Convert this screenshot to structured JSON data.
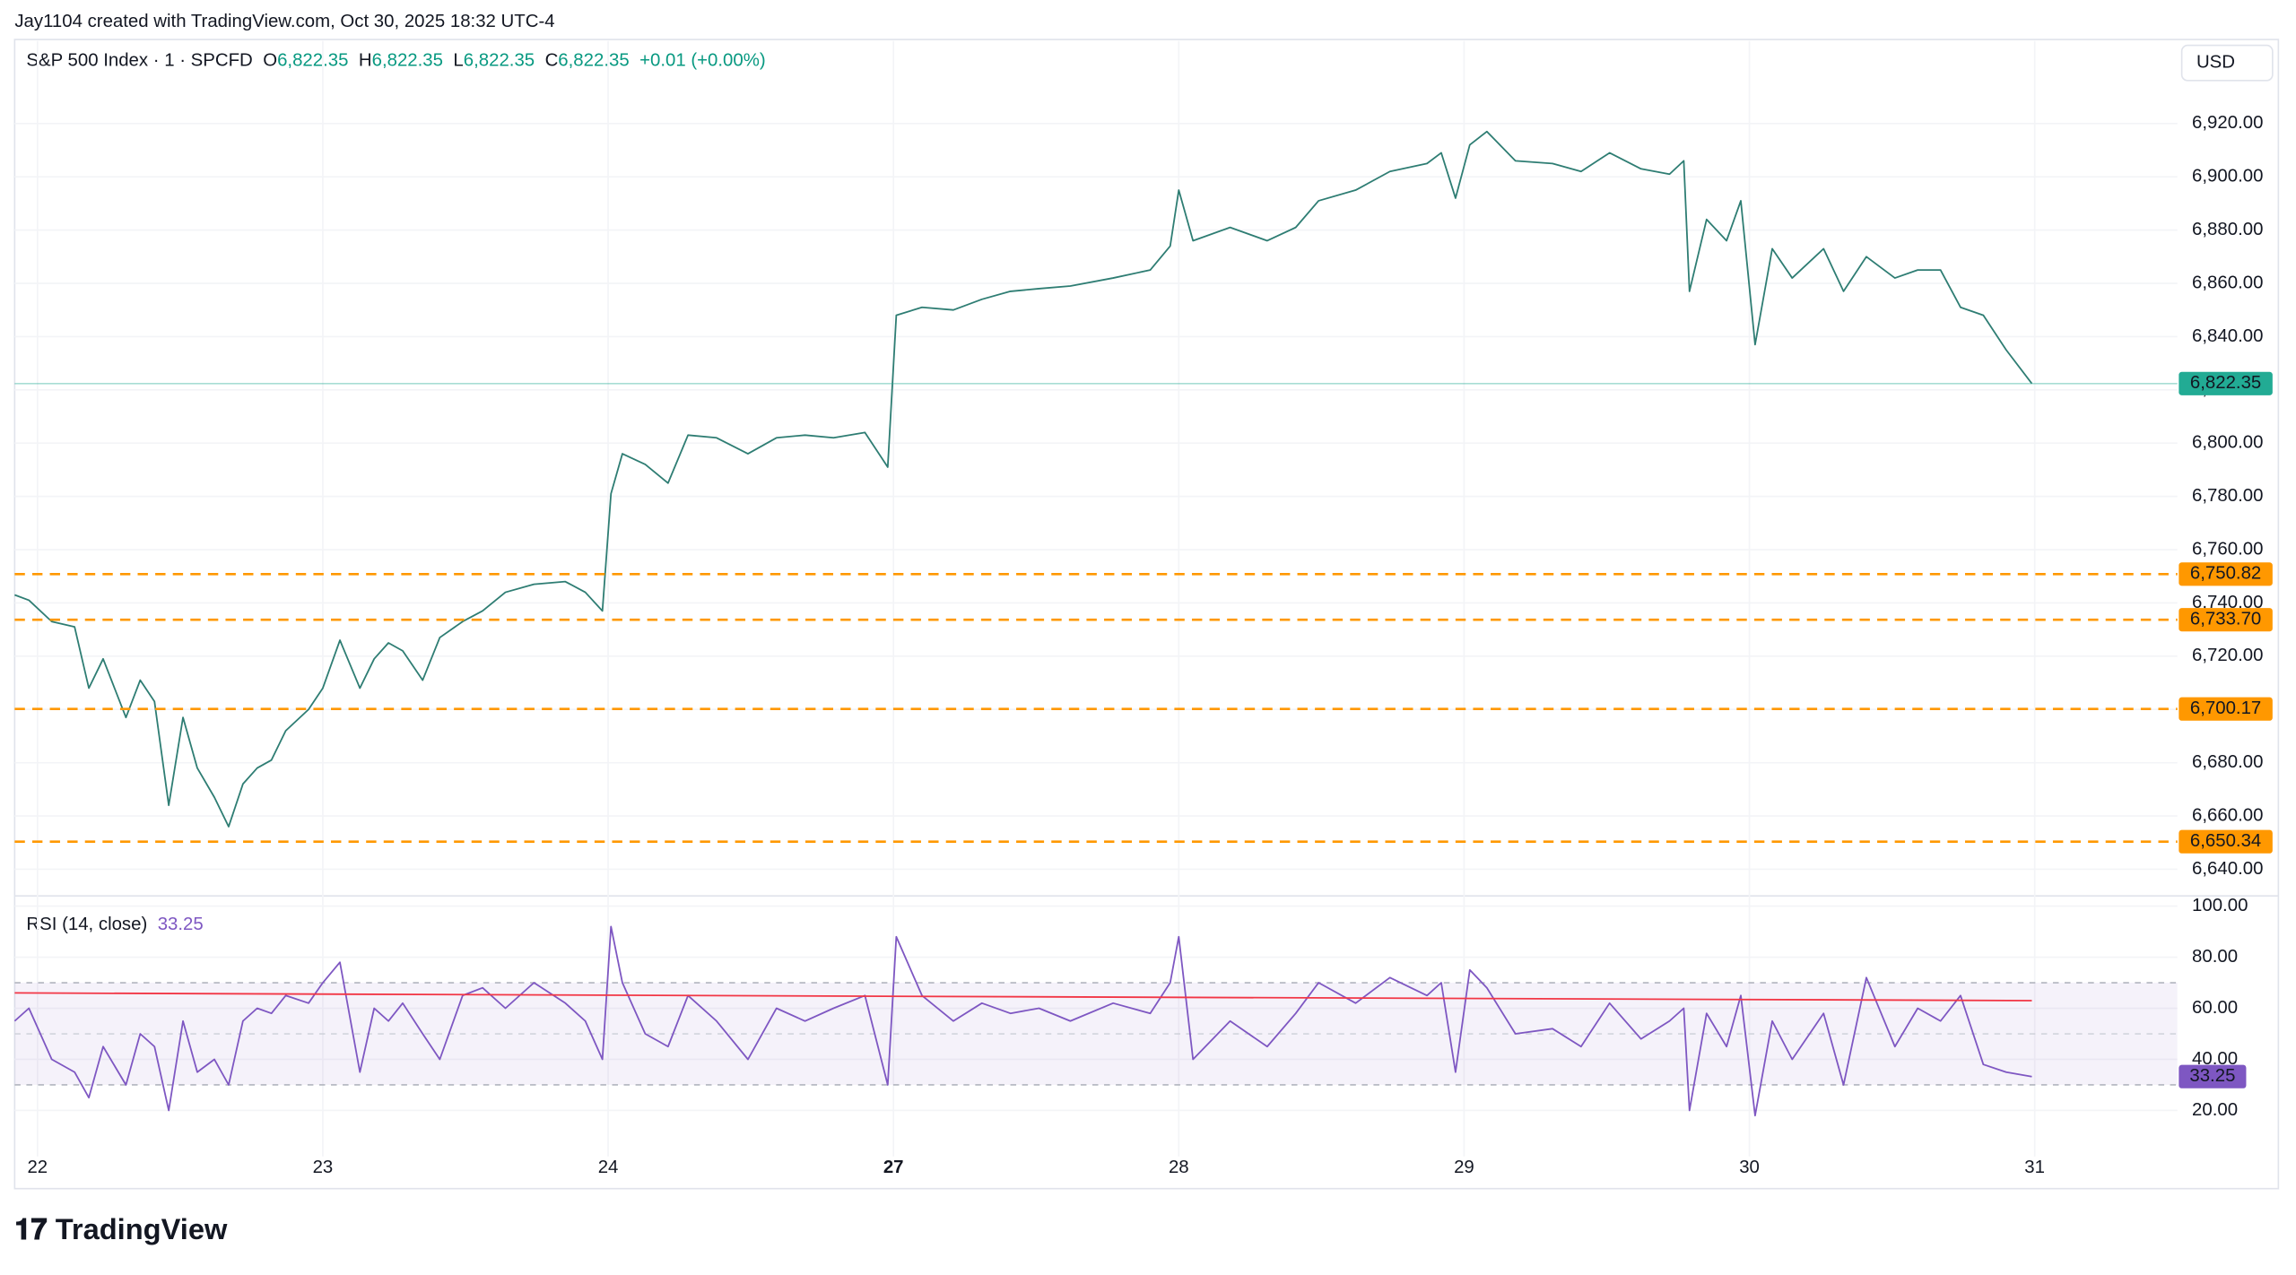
{
  "header": {
    "credit": "Jay1104 created with TradingView.com, Oct 30, 2025 18:32 UTC-4",
    "symbol": "S&P 500 Index · 1 · SPCFD",
    "fields": [
      {
        "key": "O",
        "value": "6,822.35"
      },
      {
        "key": "H",
        "value": "6,822.35"
      },
      {
        "key": "L",
        "value": "6,822.35"
      },
      {
        "key": "C",
        "value": "6,822.35"
      }
    ],
    "change": "+0.01 (+0.00%)",
    "currency": "USD"
  },
  "footer": {
    "logo": "TradingView"
  },
  "chart_data": [
    {
      "type": "line",
      "grid": true,
      "xlim": [
        -0.08,
        7.5
      ],
      "xticks": [
        {
          "value": 0,
          "label": "22"
        },
        {
          "value": 1,
          "label": "23"
        },
        {
          "value": 2,
          "label": "24"
        },
        {
          "value": 3,
          "label": "27",
          "bold": true
        },
        {
          "value": 4,
          "label": "28"
        },
        {
          "value": 5,
          "label": "29"
        },
        {
          "value": 6,
          "label": "30"
        },
        {
          "value": 7,
          "label": "31"
        }
      ],
      "ylim": [
        6630,
        6951
      ],
      "yticks": [
        {
          "value": 6640,
          "label": "6,640.00"
        },
        {
          "value": 6660,
          "label": "6,660.00"
        },
        {
          "value": 6680,
          "label": "6,680.00"
        },
        {
          "value": 6700,
          "label": "6,700.00"
        },
        {
          "value": 6720,
          "label": "6,720.00"
        },
        {
          "value": 6740,
          "label": "6,740.00"
        },
        {
          "value": 6760,
          "label": "6,760.00"
        },
        {
          "value": 6780,
          "label": "6,780.00"
        },
        {
          "value": 6800,
          "label": "6,800.00"
        },
        {
          "value": 6820,
          "label": "6,820.00"
        },
        {
          "value": 6840,
          "label": "6,840.00"
        },
        {
          "value": 6860,
          "label": "6,860.00"
        },
        {
          "value": 6880,
          "label": "6,880.00"
        },
        {
          "value": 6900,
          "label": "6,900.00"
        },
        {
          "value": 6920,
          "label": "6,920.00"
        }
      ],
      "hlines": [
        {
          "value": 6750.82,
          "label": "6,750.82"
        },
        {
          "value": 6733.7,
          "label": "6,733.70"
        },
        {
          "value": 6700.17,
          "label": "6,700.17"
        },
        {
          "value": 6650.34,
          "label": "6,650.34"
        }
      ],
      "hline_color": "#ff9800",
      "last_price": {
        "value": 6822.35,
        "label": "6,822.35",
        "color": "#22ab94"
      },
      "series": [
        {
          "color": "#2e7d73",
          "x": [
            -0.08,
            -0.03,
            0.05,
            0.13,
            0.18,
            0.23,
            0.31,
            0.36,
            0.41,
            0.46,
            0.51,
            0.56,
            0.62,
            0.67,
            0.72,
            0.77,
            0.82,
            0.87,
            0.95,
            1.0,
            1.06,
            1.13,
            1.18,
            1.23,
            1.28,
            1.35,
            1.41,
            1.49,
            1.56,
            1.64,
            1.74,
            1.85,
            1.92,
            1.98,
            2.01,
            2.05,
            2.13,
            2.21,
            2.28,
            2.38,
            2.49,
            2.59,
            2.69,
            2.79,
            2.9,
            2.98,
            3.01,
            3.1,
            3.21,
            3.31,
            3.41,
            3.51,
            3.62,
            3.77,
            3.9,
            3.97,
            4.0,
            4.05,
            4.18,
            4.31,
            4.41,
            4.49,
            4.62,
            4.74,
            4.87,
            4.92,
            4.97,
            5.02,
            5.08,
            5.18,
            5.31,
            5.41,
            5.51,
            5.62,
            5.72,
            5.77,
            5.79,
            5.85,
            5.92,
            5.97,
            6.02,
            6.08,
            6.15,
            6.26,
            6.33,
            6.41,
            6.51,
            6.59,
            6.67,
            6.74,
            6.82,
            6.9,
            6.99
          ],
          "values": [
            6743,
            6741,
            6733,
            6731,
            6708,
            6719,
            6697,
            6711,
            6703,
            6664,
            6697,
            6678,
            6667,
            6656,
            6672,
            6678,
            6681,
            6692,
            6700,
            6708,
            6726,
            6708,
            6719,
            6725,
            6722,
            6711,
            6727,
            6733,
            6737,
            6744,
            6747,
            6748,
            6744,
            6737,
            6781,
            6796,
            6792,
            6785,
            6803,
            6802,
            6796,
            6802,
            6803,
            6802,
            6804,
            6791,
            6848,
            6851,
            6850,
            6854,
            6857,
            6858,
            6859,
            6862,
            6865,
            6874,
            6895,
            6876,
            6881,
            6876,
            6881,
            6891,
            6895,
            6902,
            6905,
            6909,
            6892,
            6912,
            6917,
            6906,
            6905,
            6902,
            6909,
            6903,
            6901,
            6906,
            6857,
            6884,
            6876,
            6891,
            6837,
            6873,
            6862,
            6873,
            6857,
            6870,
            6862,
            6865,
            6865,
            6851,
            6848,
            6835,
            6822.35
          ]
        }
      ]
    },
    {
      "type": "line",
      "title": "RSI (14, close)",
      "grid": true,
      "xlim": [
        -0.08,
        7.5
      ],
      "ylim": [
        2,
        104
      ],
      "yticks": [
        {
          "value": 20,
          "label": "20.00"
        },
        {
          "value": 40,
          "label": "40.00"
        },
        {
          "value": 60,
          "label": "60.00"
        },
        {
          "value": 80,
          "label": "80.00"
        },
        {
          "value": 100,
          "label": "100.00"
        }
      ],
      "band": [
        30,
        70
      ],
      "midline": 50,
      "band_color": "#7e57c2",
      "series": [
        {
          "color": "#7e57c2",
          "x": [
            -0.08,
            -0.03,
            0.05,
            0.13,
            0.18,
            0.23,
            0.31,
            0.36,
            0.41,
            0.46,
            0.51,
            0.56,
            0.62,
            0.67,
            0.72,
            0.77,
            0.82,
            0.87,
            0.95,
            1.0,
            1.06,
            1.13,
            1.18,
            1.23,
            1.28,
            1.35,
            1.41,
            1.49,
            1.56,
            1.64,
            1.74,
            1.85,
            1.92,
            1.98,
            2.01,
            2.05,
            2.13,
            2.21,
            2.28,
            2.38,
            2.49,
            2.59,
            2.69,
            2.79,
            2.9,
            2.98,
            3.01,
            3.1,
            3.21,
            3.31,
            3.41,
            3.51,
            3.62,
            3.77,
            3.9,
            3.97,
            4.0,
            4.05,
            4.18,
            4.31,
            4.41,
            4.49,
            4.62,
            4.74,
            4.87,
            4.92,
            4.97,
            5.02,
            5.08,
            5.18,
            5.31,
            5.41,
            5.51,
            5.62,
            5.72,
            5.77,
            5.79,
            5.85,
            5.92,
            5.97,
            6.02,
            6.08,
            6.15,
            6.26,
            6.33,
            6.41,
            6.51,
            6.59,
            6.67,
            6.74,
            6.82,
            6.9,
            6.99
          ],
          "values": [
            55,
            60,
            40,
            35,
            25,
            45,
            30,
            50,
            45,
            20,
            55,
            35,
            40,
            30,
            55,
            60,
            58,
            65,
            62,
            70,
            78,
            35,
            60,
            55,
            62,
            50,
            40,
            65,
            68,
            60,
            70,
            62,
            55,
            40,
            92,
            70,
            50,
            45,
            65,
            55,
            40,
            60,
            55,
            60,
            65,
            30,
            88,
            65,
            55,
            62,
            58,
            60,
            55,
            62,
            58,
            70,
            88,
            40,
            55,
            45,
            58,
            70,
            62,
            72,
            65,
            70,
            35,
            75,
            68,
            50,
            52,
            45,
            62,
            48,
            55,
            60,
            20,
            58,
            45,
            65,
            18,
            55,
            40,
            58,
            30,
            72,
            45,
            60,
            55,
            65,
            38,
            35,
            33.25
          ]
        },
        {
          "color": "#f23645",
          "x": [
            -0.08,
            6.99
          ],
          "values": [
            66,
            63
          ]
        }
      ]
    }
  ]
}
